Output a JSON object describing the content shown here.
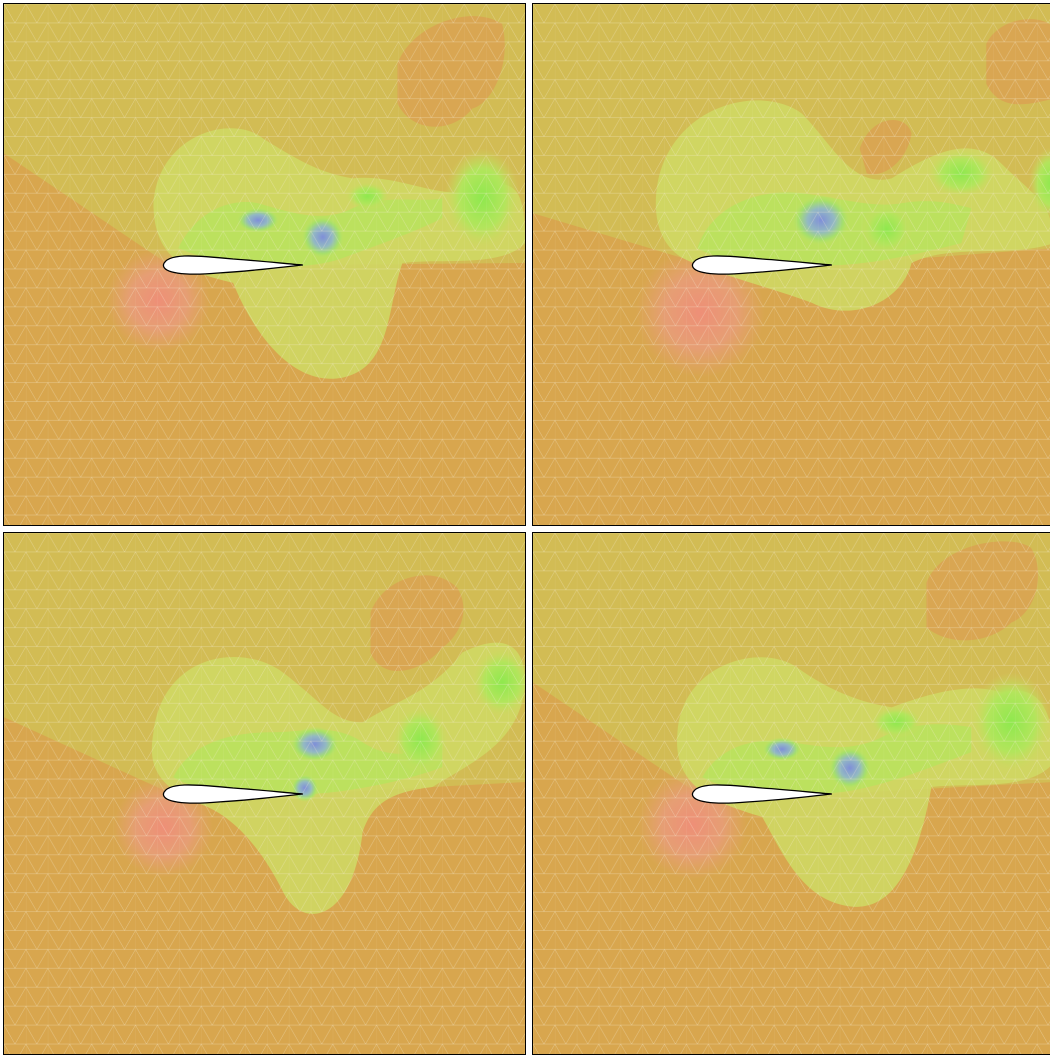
{
  "colors": {
    "background_far": "#d8a64e",
    "upper_field": "#d2bc54",
    "high_pressure": "#e39a76",
    "low_pressure_light": "#cfd864",
    "low_pressure_mid": "#b2e45e",
    "vortex_green": "#9be653",
    "vortex_blue": "#7f8fd8",
    "mesh_line": "#f6efd6",
    "airfoil_fill": "#ffffff",
    "airfoil_edge": "#000000"
  },
  "panels": [
    {
      "id": "panel-1",
      "description_icon": "airfoil-flow-snapshot-icon"
    },
    {
      "id": "panel-2",
      "description_icon": "airfoil-flow-snapshot-icon"
    },
    {
      "id": "panel-3",
      "description_icon": "airfoil-flow-snapshot-icon"
    },
    {
      "id": "panel-4",
      "description_icon": "airfoil-flow-snapshot-icon"
    }
  ]
}
